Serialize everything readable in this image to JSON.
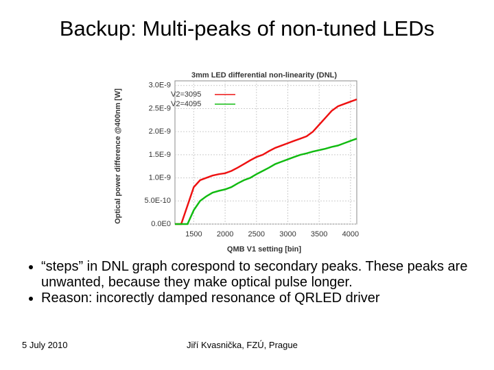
{
  "slide": {
    "title": "Backup: Multi-peaks of non-tuned LEDs",
    "bullets": [
      "“steps” in DNL graph corespond to secondary peaks. These peaks are unwanted, because they make optical pulse longer.",
      "Reason: incorectly damped resonance of QRLED driver"
    ],
    "footer_date": "5 July 2010",
    "footer_author": "Jiří Kvasnička, FZÚ, Prague"
  },
  "chart_data": {
    "type": "line",
    "title": "3mm LED differential non-linearity (DNL)",
    "x_label": "QMB V1 setting [bin]",
    "y_label": "Optical power difference @400nm [W]",
    "x": [
      1200,
      1300,
      1400,
      1500,
      1600,
      1700,
      1800,
      1900,
      2000,
      2100,
      2200,
      2300,
      2400,
      2500,
      2600,
      2700,
      2800,
      2900,
      3000,
      3100,
      3200,
      3300,
      3400,
      3500,
      3600,
      3700,
      3800,
      3900,
      4000,
      4100
    ],
    "series": [
      {
        "name": "V2=3095",
        "color": "#ee1111",
        "values": [
          0,
          0,
          4e-10,
          8e-10,
          9.5e-10,
          1e-09,
          1.05e-09,
          1.08e-09,
          1.1e-09,
          1.15e-09,
          1.22e-09,
          1.3e-09,
          1.38e-09,
          1.45e-09,
          1.5e-09,
          1.58e-09,
          1.65e-09,
          1.7e-09,
          1.75e-09,
          1.8e-09,
          1.85e-09,
          1.9e-09,
          2e-09,
          2.15e-09,
          2.3e-09,
          2.45e-09,
          2.55e-09,
          2.6e-09,
          2.65e-09,
          2.7e-09
        ]
      },
      {
        "name": "V2=4095",
        "color": "#11bb11",
        "values": [
          0,
          0,
          0,
          3e-10,
          5e-10,
          6e-10,
          6.8e-10,
          7.2e-10,
          7.5e-10,
          8e-10,
          8.8e-10,
          9.5e-10,
          1e-09,
          1.08e-09,
          1.15e-09,
          1.22e-09,
          1.3e-09,
          1.35e-09,
          1.4e-09,
          1.45e-09,
          1.5e-09,
          1.53e-09,
          1.57e-09,
          1.6e-09,
          1.63e-09,
          1.67e-09,
          1.7e-09,
          1.75e-09,
          1.8e-09,
          1.85e-09
        ]
      }
    ],
    "xlim": [
      1200,
      4100
    ],
    "xticks": [
      1500,
      2000,
      2500,
      3000,
      3500,
      4000
    ],
    "ylim": [
      0,
      3.1e-09
    ],
    "yticks": [
      {
        "value": 0,
        "label": "0.0E0"
      },
      {
        "value": 5e-10,
        "label": "5.0E-10"
      },
      {
        "value": 1e-09,
        "label": "1.0E-9"
      },
      {
        "value": 1.5e-09,
        "label": "1.5E-9"
      },
      {
        "value": 2e-09,
        "label": "2.0E-9"
      },
      {
        "value": 2.5e-09,
        "label": "2.5E-9"
      },
      {
        "value": 3e-09,
        "label": "3.0E-9"
      }
    ],
    "grid": true
  }
}
